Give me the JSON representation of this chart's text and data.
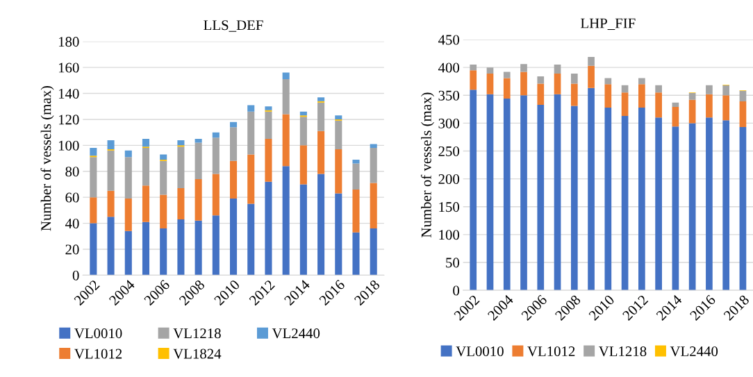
{
  "chart_data": [
    {
      "type": "bar",
      "title": "LLS_DEF",
      "ylabel": "Number of vessels (max)",
      "stacked": true,
      "grid": "y",
      "legend": "bottom",
      "categories": [
        "2002",
        null,
        "2004",
        null,
        "2006",
        null,
        "2008",
        null,
        "2010",
        null,
        "2012",
        null,
        "2014",
        null,
        "2016",
        null,
        "2018"
      ],
      "ylim": [
        0,
        180
      ],
      "yticks": [
        0,
        20,
        40,
        60,
        80,
        100,
        120,
        140,
        160,
        180
      ],
      "series": [
        {
          "name": "VL0010",
          "color": "#4472c4",
          "values": [
            40,
            45,
            34,
            41,
            36,
            43,
            42,
            46,
            59,
            55,
            72,
            84,
            70,
            78,
            63,
            33,
            36
          ]
        },
        {
          "name": "VL1012",
          "color": "#ed7d31",
          "values": [
            20,
            20,
            25,
            28,
            26,
            24,
            32,
            32,
            29,
            38,
            33,
            40,
            30,
            33,
            34,
            33,
            35
          ]
        },
        {
          "name": "VL1218",
          "color": "#a5a5a5",
          "values": [
            31,
            31,
            32,
            29,
            26,
            32,
            28,
            28,
            26,
            33,
            21,
            27,
            22,
            22,
            22,
            20,
            27
          ]
        },
        {
          "name": "VL1824",
          "color": "#ffc000",
          "values": [
            1,
            1,
            0,
            1,
            1,
            1,
            0,
            0,
            0,
            0,
            1,
            0,
            1,
            1,
            1,
            0,
            0
          ]
        },
        {
          "name": "VL2440",
          "color": "#5b9bd5",
          "values": [
            6,
            7,
            5,
            6,
            4,
            4,
            3,
            4,
            4,
            5,
            3,
            5,
            3,
            3,
            3,
            3,
            3
          ]
        }
      ]
    },
    {
      "type": "bar",
      "title": "LHP_FIF",
      "ylabel": "Number of vessels (max)",
      "stacked": true,
      "grid": "y",
      "legend": "bottom",
      "categories": [
        "2002",
        null,
        "2004",
        null,
        "2006",
        null,
        "2008",
        null,
        "2010",
        null,
        "2012",
        null,
        "2014",
        null,
        "2016",
        null,
        "2018"
      ],
      "ylim": [
        0,
        450
      ],
      "yticks": [
        0,
        50,
        100,
        150,
        200,
        250,
        300,
        350,
        400,
        450
      ],
      "series": [
        {
          "name": "VL0010",
          "color": "#4472c4",
          "values": [
            360,
            352,
            344,
            350,
            333,
            352,
            331,
            363,
            328,
            313,
            328,
            310,
            294,
            300,
            310,
            305,
            293
          ]
        },
        {
          "name": "VL1012",
          "color": "#ed7d31",
          "values": [
            35,
            37,
            37,
            42,
            38,
            37,
            40,
            40,
            42,
            42,
            42,
            45,
            35,
            42,
            42,
            45,
            46
          ]
        },
        {
          "name": "VL1218",
          "color": "#a5a5a5",
          "values": [
            10,
            11,
            11,
            14,
            13,
            16,
            18,
            16,
            11,
            13,
            11,
            13,
            8,
            12,
            16,
            18,
            19
          ]
        },
        {
          "name": "VL2440",
          "color": "#ffc000",
          "values": [
            0,
            0,
            0,
            0,
            0,
            0,
            0,
            0,
            0,
            0,
            0,
            0,
            0,
            1,
            0,
            1,
            1
          ]
        }
      ]
    }
  ]
}
